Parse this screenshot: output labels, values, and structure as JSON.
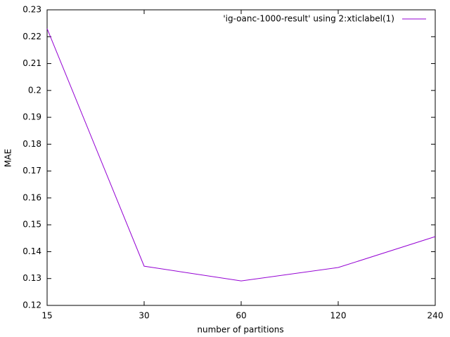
{
  "chart_data": {
    "type": "line",
    "x_label": "number of partitions",
    "y_label": "MAE",
    "categories": [
      "15",
      "30",
      "60",
      "120",
      "240"
    ],
    "series": [
      {
        "name": "'ig-oanc-1000-result' using 2:xticlabel(1)",
        "color": "#9400d3",
        "values": [
          0.223,
          0.1346,
          0.1291,
          0.1341,
          0.1456
        ]
      }
    ],
    "ylim": [
      0.12,
      0.23
    ],
    "yticks": [
      0.12,
      0.13,
      0.14,
      0.15,
      0.16,
      0.17,
      0.18,
      0.19,
      0.2,
      0.21,
      0.22,
      0.23
    ],
    "grid": false,
    "legend": "top-right"
  }
}
